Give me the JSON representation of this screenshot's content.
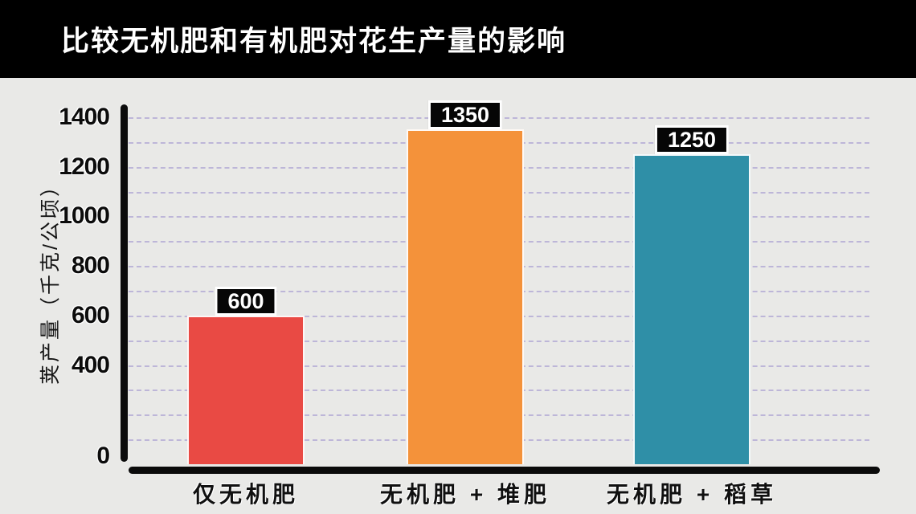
{
  "header": {
    "title": "比较无机肥和有机肥对花生产量的影响"
  },
  "colors": {
    "background": "#e9e9e7",
    "header_bg": "#000000",
    "header_text": "#ffffff",
    "axis": "#0b0b0b",
    "gridline": "#b6aed6",
    "value_label_bg": "#060606",
    "value_label_text": "#ffffff",
    "value_label_border": "#ffffff"
  },
  "chart_data": {
    "type": "bar",
    "title": "比较无机肥和有机肥对花生产量的影响",
    "categories": [
      "仅无机肥",
      "无机肥 + 堆肥",
      "无机肥 + 稻草"
    ],
    "values": [
      600,
      1350,
      1250
    ],
    "data_labels": [
      "600",
      "1350",
      "1250"
    ],
    "bar_colors": [
      "#e94a44",
      "#f4923a",
      "#2f8fa7"
    ],
    "xlabel": "",
    "ylabel": "荚产量（千克/公顷）",
    "ylim": [
      0,
      1400
    ],
    "yticks": [
      1400,
      1200,
      1000,
      800,
      600,
      400,
      0
    ],
    "gridline_interval": 100,
    "grid": "horizontal-dashed",
    "legend": "none"
  }
}
